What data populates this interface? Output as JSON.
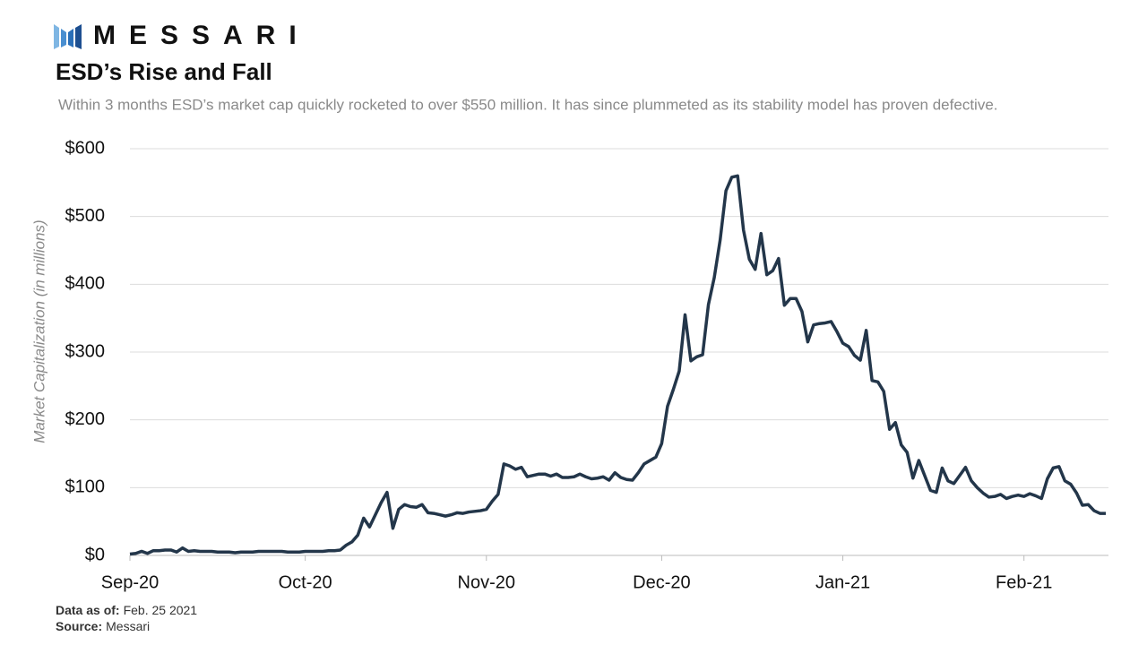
{
  "logo": "MESSARI",
  "chart_data": {
    "type": "line",
    "title": "ESD’s Rise and Fall",
    "subtitle": "Within 3 months ESD’s market cap quickly rocketed to over $550 million. It has since plummeted as its stability model has proven defective.",
    "ylabel": "Market Capitalization (in millions)",
    "categories": [
      "Sep-20",
      null,
      null,
      null,
      null,
      null,
      null,
      null,
      null,
      null,
      null,
      null,
      null,
      null,
      null,
      null,
      null,
      null,
      null,
      null,
      null,
      null,
      null,
      null,
      null,
      null,
      null,
      null,
      null,
      null,
      "Oct-20",
      null,
      null,
      null,
      null,
      null,
      null,
      null,
      null,
      null,
      null,
      null,
      null,
      null,
      null,
      null,
      null,
      null,
      null,
      null,
      null,
      null,
      null,
      null,
      null,
      null,
      null,
      null,
      null,
      null,
      null,
      "Nov-20",
      null,
      null,
      null,
      null,
      null,
      null,
      null,
      null,
      null,
      null,
      null,
      null,
      null,
      null,
      null,
      null,
      null,
      null,
      null,
      null,
      null,
      null,
      null,
      null,
      null,
      null,
      null,
      null,
      null,
      "Dec-20",
      null,
      null,
      null,
      null,
      null,
      null,
      null,
      null,
      null,
      null,
      null,
      null,
      null,
      null,
      null,
      null,
      null,
      null,
      null,
      null,
      null,
      null,
      null,
      null,
      null,
      null,
      null,
      null,
      null,
      null,
      "Jan-21",
      null,
      null,
      null,
      null,
      null,
      null,
      null,
      null,
      null,
      null,
      null,
      null,
      null,
      null,
      null,
      null,
      null,
      null,
      null,
      null,
      null,
      null,
      null,
      null,
      null,
      null,
      null,
      null,
      null,
      null,
      "Feb-21",
      null,
      null,
      null,
      null,
      null,
      null,
      null,
      null,
      null,
      null,
      null,
      null,
      null,
      null
    ],
    "values": [
      2,
      3,
      6,
      3,
      7,
      7,
      8,
      8,
      5,
      11,
      6,
      7,
      6,
      6,
      6,
      5,
      5,
      5,
      4,
      5,
      5,
      5,
      6,
      6,
      6,
      6,
      6,
      5,
      5,
      5,
      6,
      6,
      6,
      6,
      7,
      7,
      8,
      15,
      20,
      30,
      55,
      42,
      60,
      78,
      93,
      40,
      68,
      75,
      72,
      71,
      75,
      63,
      62,
      60,
      58,
      60,
      63,
      62,
      64,
      65,
      66,
      68,
      80,
      90,
      135,
      132,
      127,
      130,
      116,
      118,
      120,
      120,
      117,
      120,
      115,
      115,
      116,
      120,
      116,
      113,
      114,
      116,
      111,
      122,
      115,
      112,
      111,
      122,
      135,
      140,
      145,
      165,
      220,
      245,
      272,
      355,
      287,
      293,
      296,
      370,
      410,
      465,
      538,
      558,
      560,
      480,
      437,
      422,
      475,
      414,
      420,
      438,
      369,
      379,
      379,
      360,
      315,
      340,
      342,
      343,
      345,
      330,
      313,
      308,
      295,
      288,
      332,
      258,
      256,
      242,
      186,
      196,
      163,
      152,
      114,
      140,
      118,
      96,
      93,
      129,
      110,
      106,
      118,
      130,
      110,
      100,
      92,
      86,
      87,
      90,
      84,
      87,
      89,
      87,
      91,
      88,
      84,
      113,
      129,
      131,
      110,
      105,
      92,
      74,
      75,
      66,
      62,
      62
    ],
    "color": "#23364a",
    "ylim": [
      0,
      600
    ],
    "yticks": [
      {
        "value": 0,
        "label": "$0"
      },
      {
        "value": 100,
        "label": "$100"
      },
      {
        "value": 200,
        "label": "$200"
      },
      {
        "value": 300,
        "label": "$300"
      },
      {
        "value": 400,
        "label": "$400"
      },
      {
        "value": 500,
        "label": "$500"
      },
      {
        "value": 600,
        "label": "$600"
      }
    ],
    "grid": true
  },
  "footer": {
    "data_as_of_label": "Data as of:",
    "data_as_of": "Feb. 25 2021",
    "source_label": "Source:",
    "source": "Messari"
  }
}
